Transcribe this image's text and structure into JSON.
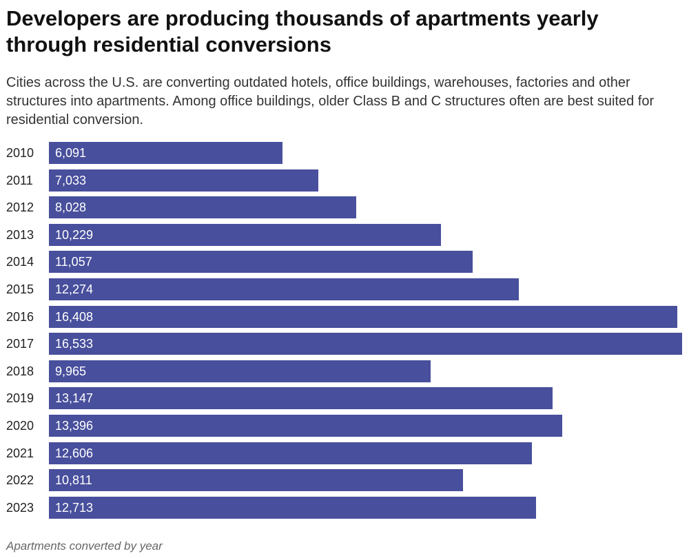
{
  "title": "Developers are producing thousands of apartments yearly through residential conversions",
  "subtitle": "Cities across the U.S. are converting outdated hotels, office buildings, warehouses, factories and other structures into apartments. Among office buildings, older Class B and C structures often are best suited for residential conversion.",
  "footer": "Apartments converted by year",
  "chart_data": {
    "type": "bar",
    "orientation": "horizontal",
    "categories": [
      "2010",
      "2011",
      "2012",
      "2013",
      "2014",
      "2015",
      "2016",
      "2017",
      "2018",
      "2019",
      "2020",
      "2021",
      "2022",
      "2023"
    ],
    "values": [
      6091,
      7033,
      8028,
      10229,
      11057,
      12274,
      16408,
      16533,
      9965,
      13147,
      13396,
      12606,
      10811,
      12713
    ],
    "value_labels": [
      "6,091",
      "7,033",
      "8,028",
      "10,229",
      "11,057",
      "12,274",
      "16,408",
      "16,533",
      "9,965",
      "13,147",
      "13,396",
      "12,606",
      "10,811",
      "12,713"
    ],
    "title": "Developers are producing thousands of apartments yearly through residential conversions",
    "xlabel": "",
    "ylabel": "",
    "xlim": [
      0,
      16533
    ],
    "grid": false,
    "bar_color": "#484f9c"
  }
}
